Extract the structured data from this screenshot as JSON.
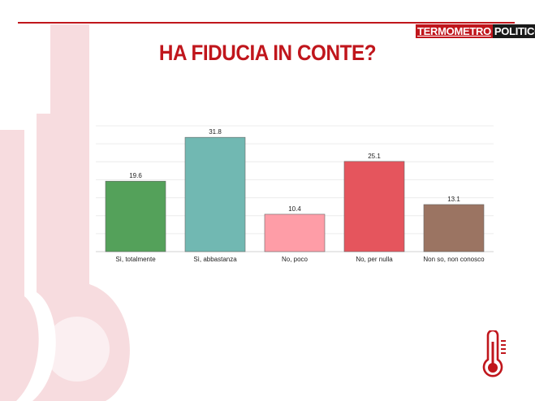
{
  "header": {
    "brand_part1": "TERMOMETRO",
    "brand_part2": "POLITICO",
    "title": "HA FIDUCIA IN CONTE?"
  },
  "colors": {
    "accent": "#c0161c",
    "background_thermometer": "#f7dcdf"
  },
  "icons": {
    "corner_icon": "thermometer-icon",
    "background_graphic": "thermometer-icon"
  },
  "chart_data": {
    "type": "bar",
    "title": "HA FIDUCIA IN CONTE?",
    "categories": [
      "Sì, totalmente",
      "Sì, abbastanza",
      "No, poco",
      "No, per nulla",
      "Non so, non conosco"
    ],
    "values": [
      19.6,
      31.8,
      10.4,
      25.1,
      13.1
    ],
    "value_labels": [
      "19.6",
      "31.8",
      "10.4",
      "25.1",
      "13.1"
    ],
    "bar_colors": [
      "#54a15a",
      "#71b8b2",
      "#fe9da7",
      "#e5555d",
      "#9b7462"
    ],
    "xlabel": "",
    "ylabel": "",
    "ylim": [
      0,
      35
    ],
    "grid": true,
    "legend": "none"
  }
}
